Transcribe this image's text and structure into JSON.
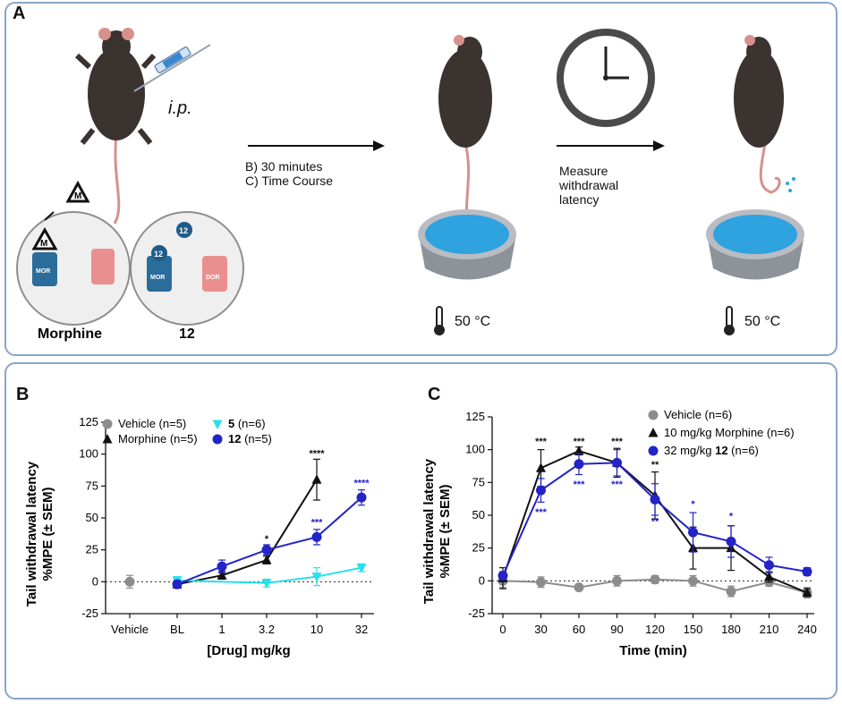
{
  "panel_a": {
    "label": "A",
    "injection_route": "i.p.",
    "step_text": [
      "B) 30 minutes",
      "C) Time Course"
    ],
    "measure_text": [
      "Measure",
      "withdrawal",
      "latency"
    ],
    "temperature": "50 °C",
    "receptor_labels": {
      "mor": "MOR",
      "dor": "DOR",
      "m": "M",
      "c12": "12"
    },
    "compounds": [
      "Morphine",
      "12"
    ]
  },
  "chart_data": [
    {
      "panel": "B",
      "type": "line",
      "ylabel_top": "Tail withdrawal latency",
      "ylabel_bottom": "%MPE (± SEM)",
      "xlabel": "[Drug] mg/kg",
      "categories": [
        "Vehicle",
        "BL",
        "1",
        "3.2",
        "10",
        "32"
      ],
      "ylim": [
        -25,
        125
      ],
      "yticks": [
        "-25",
        "0",
        "25",
        "50",
        "75",
        "100",
        "125"
      ],
      "legend": [
        {
          "name": "Vehicle",
          "bold": "",
          "n": "(n=5)",
          "color": "#8c8c8c",
          "marker": "circle"
        },
        {
          "name": "Morphine",
          "bold": "",
          "n": "(n=5)",
          "color": "#111111",
          "marker": "triangle"
        },
        {
          "name": "",
          "bold": "5",
          "n": "(n=6)",
          "color": "#29e0ea",
          "marker": "triangle-down"
        },
        {
          "name": "",
          "bold": "12",
          "n": "(n=5)",
          "color": "#2323c8",
          "marker": "circle"
        }
      ],
      "series": [
        {
          "name": "Vehicle",
          "color": "#8c8c8c",
          "marker": "circle",
          "x": [
            0
          ],
          "values": [
            0
          ],
          "err": [
            5
          ]
        },
        {
          "name": "Morphine",
          "color": "#111111",
          "marker": "triangle",
          "x": [
            1,
            2,
            3,
            4
          ],
          "values": [
            -2,
            5,
            17,
            80
          ],
          "err": [
            3,
            3,
            3,
            16
          ]
        },
        {
          "name": "5",
          "color": "#29e0ea",
          "marker": "triangle-down",
          "x": [
            1,
            3,
            4,
            5
          ],
          "values": [
            1,
            -1,
            4,
            11
          ],
          "err": [
            3,
            3,
            7,
            3
          ]
        },
        {
          "name": "12",
          "color": "#2323c8",
          "marker": "circle",
          "x": [
            1,
            2,
            3,
            4,
            5
          ],
          "values": [
            -2,
            12,
            25,
            35,
            66
          ],
          "err": [
            3,
            5,
            4,
            6,
            6
          ]
        }
      ],
      "annotations": [
        {
          "x": 3,
          "y": 31,
          "text": "*",
          "color": "#111111"
        },
        {
          "x": 4,
          "y": 98,
          "text": "****",
          "color": "#111111"
        },
        {
          "x": 4,
          "y": 44,
          "text": "***",
          "color": "#2323c8"
        },
        {
          "x": 5,
          "y": 75,
          "text": "****",
          "color": "#2323c8"
        }
      ]
    },
    {
      "panel": "C",
      "type": "line",
      "ylabel_top": "Tail withdrawal latency",
      "ylabel_bottom": "%MPE (± SEM)",
      "xlabel": "Time (min)",
      "categories": [
        "0",
        "30",
        "60",
        "90",
        "120",
        "150",
        "180",
        "210",
        "240"
      ],
      "ylim": [
        -25,
        125
      ],
      "yticks": [
        "-25",
        "0",
        "25",
        "50",
        "75",
        "100",
        "125"
      ],
      "legend": [
        {
          "name": "Vehicle",
          "bold": "",
          "n": "(n=6)",
          "color": "#8c8c8c",
          "marker": "circle"
        },
        {
          "name": "10 mg/kg Morphine",
          "bold": "",
          "n": "(n=6)",
          "color": "#111111",
          "marker": "triangle"
        },
        {
          "name": "32 mg/kg",
          "bold": "12",
          "n": "(n=6)",
          "color": "#2323c8",
          "marker": "circle"
        }
      ],
      "series": [
        {
          "name": "Vehicle",
          "color": "#8c8c8c",
          "marker": "circle",
          "x": [
            0,
            30,
            60,
            90,
            120,
            150,
            180,
            210,
            240
          ],
          "values": [
            0,
            -1,
            -5,
            0,
            1,
            0,
            -8,
            -1,
            -9
          ],
          "err": [
            5,
            4,
            2,
            4,
            3,
            4,
            4,
            3,
            4
          ]
        },
        {
          "name": "10 mg/kg Morphine",
          "color": "#111111",
          "marker": "triangle",
          "x": [
            0,
            30,
            60,
            90,
            120,
            150,
            180,
            210,
            240
          ],
          "values": [
            2,
            86,
            99,
            90,
            65,
            25,
            25,
            3,
            -9
          ],
          "err": [
            8,
            14,
            3,
            11,
            18,
            16,
            17,
            4,
            3
          ]
        },
        {
          "name": "32 mg/kg 12",
          "color": "#2323c8",
          "marker": "circle",
          "x": [
            0,
            30,
            60,
            90,
            120,
            150,
            180,
            210,
            240
          ],
          "values": [
            4,
            69,
            89,
            90,
            62,
            37,
            30,
            12,
            7
          ],
          "err": [
            3,
            9,
            8,
            10,
            12,
            15,
            12,
            6,
            3
          ]
        }
      ],
      "annotations": [
        {
          "x": 30,
          "y": 104,
          "text": "***",
          "color": "#111111"
        },
        {
          "x": 60,
          "y": 104,
          "text": "***",
          "color": "#111111"
        },
        {
          "x": 90,
          "y": 104,
          "text": "***",
          "color": "#111111"
        },
        {
          "x": 120,
          "y": 86,
          "text": "**",
          "color": "#111111"
        },
        {
          "x": 30,
          "y": 50,
          "text": "***",
          "color": "#2323c8"
        },
        {
          "x": 60,
          "y": 71,
          "text": "***",
          "color": "#2323c8"
        },
        {
          "x": 90,
          "y": 71,
          "text": "***",
          "color": "#2323c8"
        },
        {
          "x": 120,
          "y": 43,
          "text": "**",
          "color": "#2323c8"
        },
        {
          "x": 150,
          "y": 56,
          "text": "*",
          "color": "#2323c8"
        },
        {
          "x": 180,
          "y": 47,
          "text": "*",
          "color": "#2323c8"
        }
      ]
    }
  ]
}
